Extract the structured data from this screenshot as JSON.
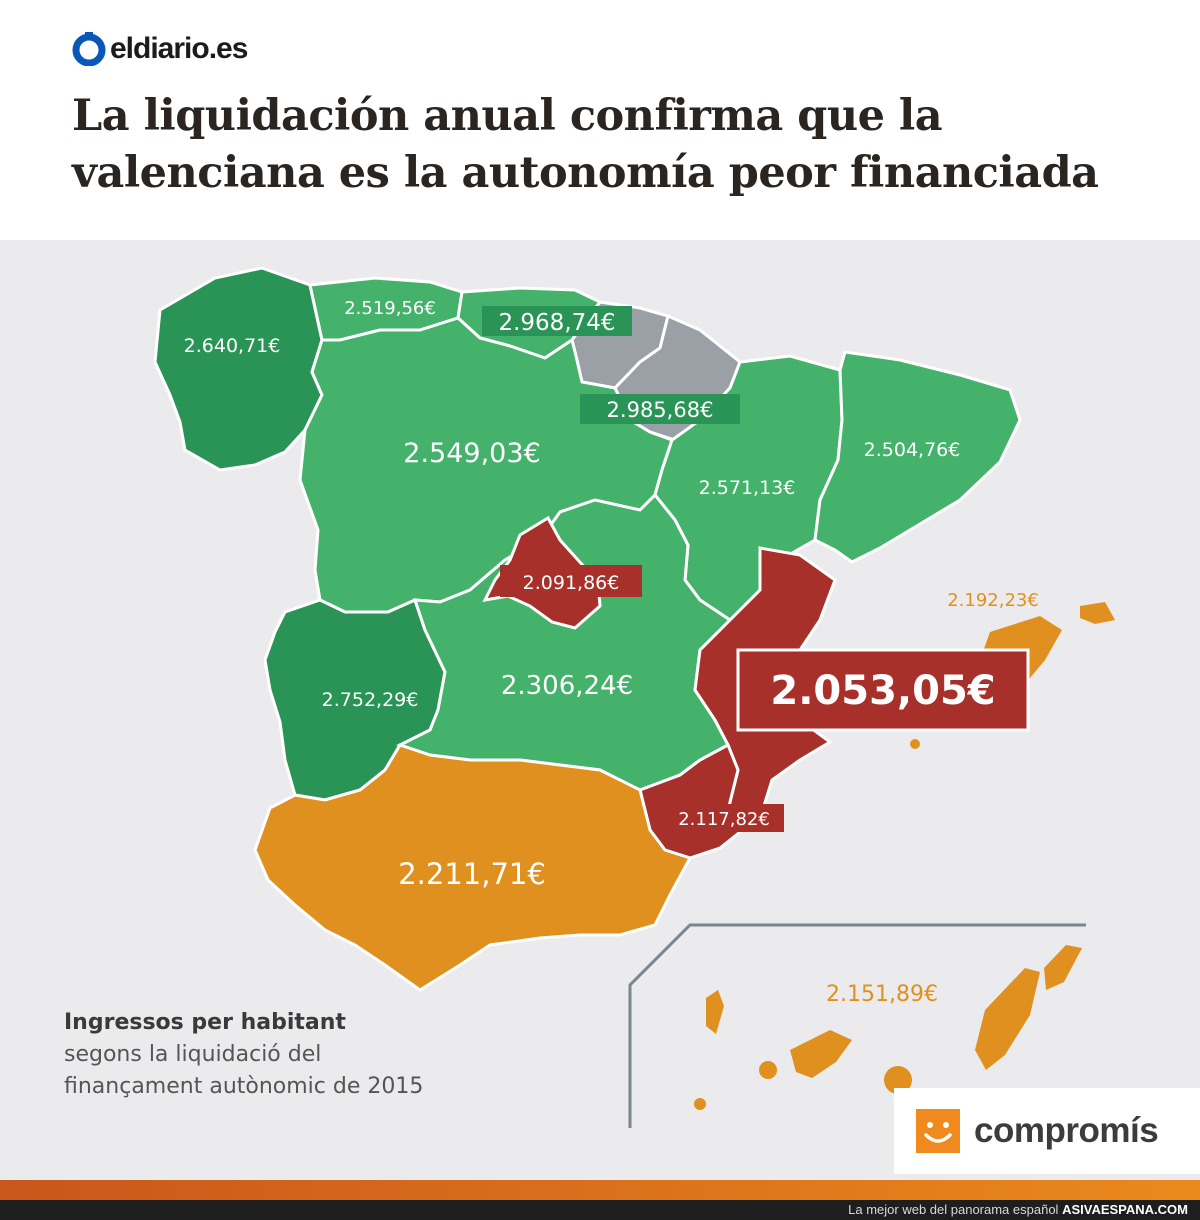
{
  "header": {
    "logo_text": "eldiario.es",
    "headline": "La liquidación anual confirma que la valenciana es la autonomía peor financiada"
  },
  "colors": {
    "green_light": "#44b26b",
    "green_dark": "#2a9456",
    "grey": "#9aa0a6",
    "red": "#a8302a",
    "orange": "#e0901f",
    "background": "#ebebed"
  },
  "regions": {
    "galicia": "2.640,71€",
    "asturias": "2.519,56€",
    "cantabria": "2.968,74€",
    "navarra_pais_vasco": "2.985,68€",
    "castilla_leon": "2.549,03€",
    "aragon": "2.571,13€",
    "cataluna": "2.504,76€",
    "madrid": "2.091,86€",
    "extremadura": "2.752,29€",
    "castilla_la_mancha": "2.306,24€",
    "comunitat_valenciana": "2.053,05€",
    "baleares": "2.192,23€",
    "murcia": "2.117,82€",
    "andalucia": "2.211,71€",
    "canarias": "2.151,89€"
  },
  "caption": {
    "title": "Ingressos per habitant",
    "line1": "segons la liquidació del",
    "line2": "finançament autònomic de 2015"
  },
  "brand": {
    "name": "compromís"
  },
  "footer": {
    "text": "La mejor web del panorama español",
    "site": "ASIVAESPANA.COM"
  }
}
